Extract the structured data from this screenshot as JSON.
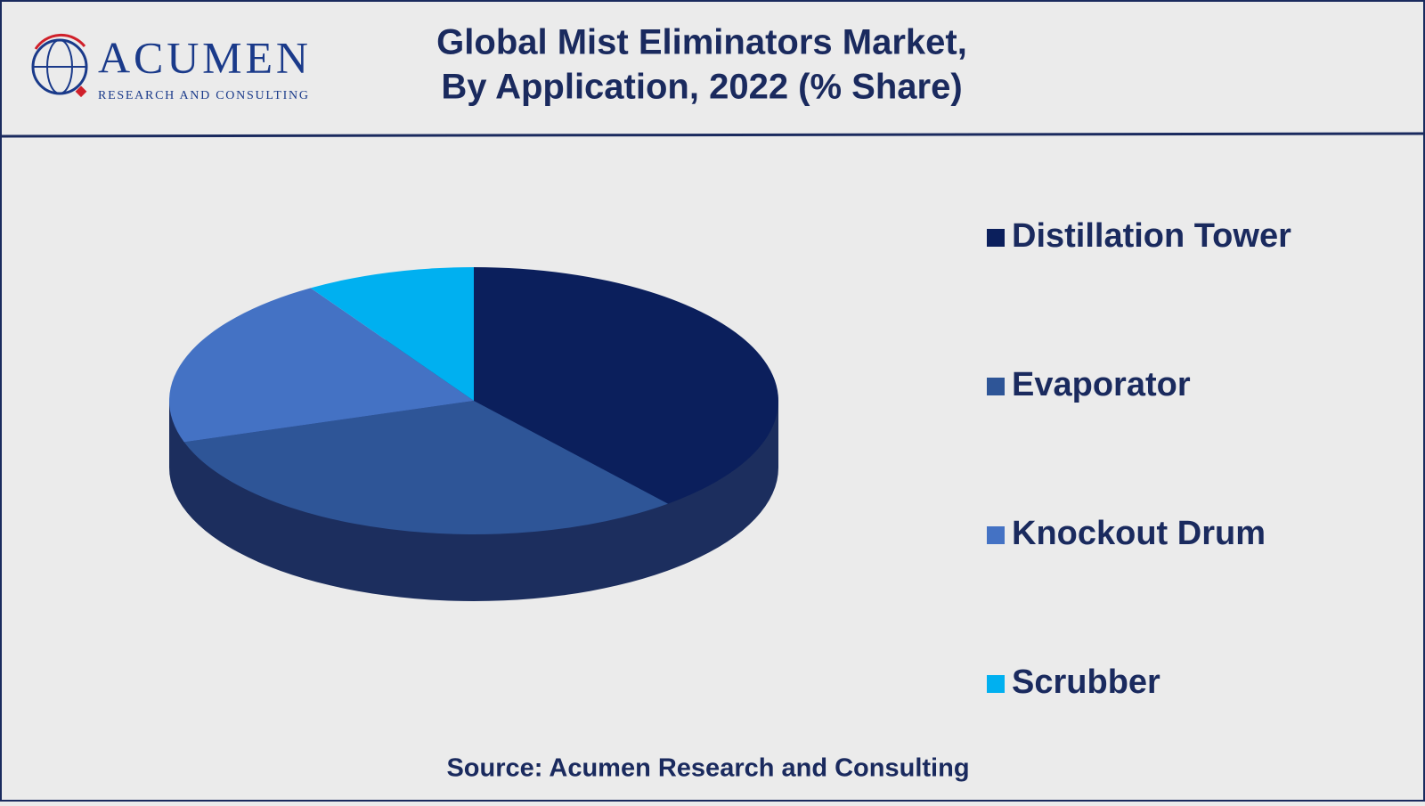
{
  "logo": {
    "name": "ACUMEN",
    "tagline": "RESEARCH AND CONSULTING"
  },
  "chart_data": {
    "type": "pie",
    "title": [
      "Global Mist Eliminators Market,",
      "By Application, 2022 (% Share)"
    ],
    "categories": [
      "Distillation Tower",
      "Evaporator",
      "Knockout Drum",
      "Scrubber"
    ],
    "values": [
      39,
      31,
      21,
      9
    ],
    "colors": [
      "#0b1f5c",
      "#2e5597",
      "#4472c4",
      "#00b0f0"
    ],
    "legend": "right",
    "source": "Source: Acumen Research and Consulting"
  }
}
